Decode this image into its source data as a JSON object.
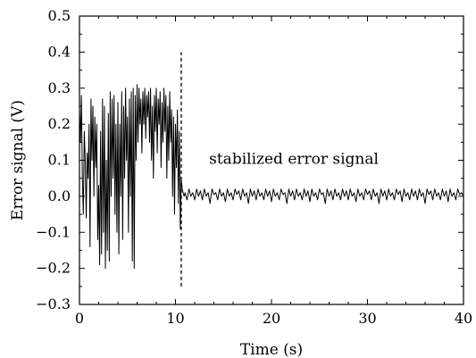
{
  "chart_data": {
    "type": "line",
    "xlabel": "Time (s)",
    "ylabel": "Error signal (V)",
    "xlim": [
      0,
      40
    ],
    "ylim": [
      -0.3,
      0.5
    ],
    "x_ticks": [
      0,
      10,
      20,
      30,
      40
    ],
    "x_tick_labels": [
      "0",
      "10",
      "20",
      "30",
      "40"
    ],
    "y_ticks": [
      -0.3,
      -0.2,
      -0.1,
      0.0,
      0.1,
      0.2,
      0.3,
      0.4,
      0.5
    ],
    "y_tick_labels": [
      "−0.3",
      "−0.2",
      "−0.1",
      "0.0",
      "0.1",
      "0.2",
      "0.3",
      "0.4",
      "0.5"
    ],
    "grid": false,
    "series": [
      {
        "style": "solid",
        "color": "#000000",
        "points": [
          [
            0.0,
            0.24
          ],
          [
            0.1,
            0.15
          ],
          [
            0.2,
            0.28
          ],
          [
            0.3,
            0.05
          ],
          [
            0.4,
            -0.05
          ],
          [
            0.5,
            0.18
          ],
          [
            0.6,
            0.1
          ],
          [
            0.7,
            -0.06
          ],
          [
            0.8,
            0.12
          ],
          [
            0.9,
            0.05
          ],
          [
            1.0,
            0.2
          ],
          [
            1.1,
            -0.14
          ],
          [
            1.2,
            0.27
          ],
          [
            1.3,
            0.1
          ],
          [
            1.4,
            0.25
          ],
          [
            1.5,
            0.0
          ],
          [
            1.6,
            0.22
          ],
          [
            1.7,
            0.08
          ],
          [
            1.8,
            0.2
          ],
          [
            1.9,
            -0.12
          ],
          [
            2.0,
            0.03
          ],
          [
            2.1,
            -0.19
          ],
          [
            2.2,
            0.18
          ],
          [
            2.3,
            -0.16
          ],
          [
            2.4,
            0.27
          ],
          [
            2.5,
            -0.1
          ],
          [
            2.6,
            0.25
          ],
          [
            2.7,
            -0.2
          ],
          [
            2.8,
            0.1
          ],
          [
            2.9,
            -0.15
          ],
          [
            3.0,
            0.23
          ],
          [
            3.1,
            -0.18
          ],
          [
            3.2,
            0.29
          ],
          [
            3.3,
            0.0
          ],
          [
            3.4,
            0.27
          ],
          [
            3.5,
            0.05
          ],
          [
            3.6,
            0.28
          ],
          [
            3.7,
            -0.05
          ],
          [
            3.8,
            0.2
          ],
          [
            3.9,
            -0.1
          ],
          [
            4.0,
            0.26
          ],
          [
            4.1,
            -0.16
          ],
          [
            4.2,
            0.2
          ],
          [
            4.3,
            0.0
          ],
          [
            4.4,
            0.29
          ],
          [
            4.5,
            -0.12
          ],
          [
            4.6,
            0.25
          ],
          [
            4.7,
            0.05
          ],
          [
            4.8,
            0.3
          ],
          [
            4.9,
            0.1
          ],
          [
            5.0,
            0.22
          ],
          [
            5.1,
            -0.1
          ],
          [
            5.2,
            0.27
          ],
          [
            5.3,
            0.0
          ],
          [
            5.4,
            0.29
          ],
          [
            5.5,
            -0.18
          ],
          [
            5.6,
            0.3
          ],
          [
            5.7,
            -0.2
          ],
          [
            5.8,
            0.28
          ],
          [
            5.9,
            0.1
          ],
          [
            6.0,
            0.31
          ],
          [
            6.1,
            0.15
          ],
          [
            6.2,
            0.3
          ],
          [
            6.3,
            0.2
          ],
          [
            6.4,
            0.27
          ],
          [
            6.5,
            0.12
          ],
          [
            6.6,
            0.29
          ],
          [
            6.7,
            0.2
          ],
          [
            6.8,
            0.3
          ],
          [
            6.9,
            0.16
          ],
          [
            7.0,
            0.28
          ],
          [
            7.1,
            0.22
          ],
          [
            7.2,
            0.29
          ],
          [
            7.3,
            0.15
          ],
          [
            7.4,
            0.3
          ],
          [
            7.5,
            0.1
          ],
          [
            7.6,
            0.25
          ],
          [
            7.7,
            0.05
          ],
          [
            7.8,
            0.28
          ],
          [
            7.9,
            0.18
          ],
          [
            8.0,
            0.3
          ],
          [
            8.1,
            0.12
          ],
          [
            8.2,
            0.27
          ],
          [
            8.3,
            0.2
          ],
          [
            8.4,
            0.29
          ],
          [
            8.5,
            0.08
          ],
          [
            8.6,
            0.26
          ],
          [
            8.7,
            0.15
          ],
          [
            8.8,
            0.3
          ],
          [
            8.9,
            0.18
          ],
          [
            9.0,
            0.28
          ],
          [
            9.1,
            0.05
          ],
          [
            9.2,
            0.25
          ],
          [
            9.3,
            0.1
          ],
          [
            9.4,
            0.29
          ],
          [
            9.5,
            0.15
          ],
          [
            9.6,
            0.24
          ],
          [
            9.7,
            0.0
          ],
          [
            9.8,
            0.22
          ],
          [
            9.9,
            -0.05
          ],
          [
            10.0,
            0.2
          ],
          [
            10.1,
            0.08
          ],
          [
            10.2,
            0.24
          ],
          [
            10.3,
            -0.02
          ],
          [
            10.4,
            0.18
          ],
          [
            10.5,
            -0.09
          ],
          [
            10.6,
            0.05
          ],
          [
            10.7,
            0.02
          ],
          [
            10.8,
            0.01
          ],
          [
            10.9,
            0.0
          ],
          [
            11.0,
            0.01
          ],
          [
            11.2,
            -0.01
          ],
          [
            11.4,
            0.02
          ],
          [
            11.6,
            0.0
          ],
          [
            11.8,
            0.01
          ],
          [
            12.0,
            -0.01
          ],
          [
            12.2,
            0.02
          ],
          [
            12.4,
            0.0
          ],
          [
            12.6,
            0.015
          ],
          [
            12.8,
            -0.01
          ],
          [
            13.0,
            0.02
          ],
          [
            13.2,
            0.0
          ],
          [
            13.4,
            0.01
          ],
          [
            13.6,
            -0.02
          ],
          [
            13.8,
            0.02
          ],
          [
            14.0,
            0.005
          ],
          [
            14.2,
            0.01
          ],
          [
            14.4,
            -0.01
          ],
          [
            14.6,
            0.02
          ],
          [
            14.8,
            0.0
          ],
          [
            15.0,
            0.01
          ],
          [
            15.2,
            -0.015
          ],
          [
            15.4,
            0.02
          ],
          [
            15.6,
            0.0
          ],
          [
            15.8,
            0.01
          ],
          [
            16.0,
            -0.01
          ],
          [
            16.2,
            0.02
          ],
          [
            16.4,
            0.005
          ],
          [
            16.6,
            0.015
          ],
          [
            16.8,
            -0.01
          ],
          [
            17.0,
            0.02
          ],
          [
            17.2,
            0.0
          ],
          [
            17.4,
            0.01
          ],
          [
            17.6,
            -0.02
          ],
          [
            17.8,
            0.02
          ],
          [
            18.0,
            0.0
          ],
          [
            18.2,
            0.015
          ],
          [
            18.4,
            -0.01
          ],
          [
            18.6,
            0.02
          ],
          [
            18.8,
            0.0
          ],
          [
            19.0,
            0.01
          ],
          [
            19.2,
            -0.01
          ],
          [
            19.4,
            0.02
          ],
          [
            19.6,
            0.0
          ],
          [
            19.8,
            0.015
          ],
          [
            20.0,
            -0.015
          ],
          [
            20.2,
            0.02
          ],
          [
            20.4,
            0.0
          ],
          [
            20.6,
            0.01
          ],
          [
            20.8,
            -0.01
          ],
          [
            21.0,
            0.02
          ],
          [
            21.2,
            0.005
          ],
          [
            21.4,
            0.01
          ],
          [
            21.6,
            -0.02
          ],
          [
            21.8,
            0.02
          ],
          [
            22.0,
            0.0
          ],
          [
            22.2,
            0.015
          ],
          [
            22.4,
            -0.01
          ],
          [
            22.6,
            0.02
          ],
          [
            22.8,
            0.0
          ],
          [
            23.0,
            0.01
          ],
          [
            23.2,
            -0.01
          ],
          [
            23.4,
            0.02
          ],
          [
            23.6,
            0.0
          ],
          [
            23.8,
            0.015
          ],
          [
            24.0,
            -0.015
          ],
          [
            24.2,
            0.02
          ],
          [
            24.4,
            0.0
          ],
          [
            24.6,
            0.01
          ],
          [
            24.8,
            -0.01
          ],
          [
            25.0,
            0.02
          ],
          [
            25.2,
            0.005
          ],
          [
            25.4,
            0.01
          ],
          [
            25.6,
            -0.02
          ],
          [
            25.8,
            0.02
          ],
          [
            26.0,
            0.0
          ],
          [
            26.2,
            0.015
          ],
          [
            26.4,
            -0.01
          ],
          [
            26.6,
            0.02
          ],
          [
            26.8,
            0.0
          ],
          [
            27.0,
            0.01
          ],
          [
            27.2,
            -0.01
          ],
          [
            27.4,
            0.02
          ],
          [
            27.6,
            0.0
          ],
          [
            27.8,
            0.015
          ],
          [
            28.0,
            -0.01
          ],
          [
            28.2,
            0.02
          ],
          [
            28.4,
            0.0
          ],
          [
            28.6,
            0.01
          ],
          [
            28.8,
            -0.015
          ],
          [
            29.0,
            0.02
          ],
          [
            29.2,
            0.0
          ],
          [
            29.4,
            0.01
          ],
          [
            29.6,
            -0.01
          ],
          [
            29.8,
            0.02
          ],
          [
            30.0,
            0.005
          ],
          [
            30.2,
            0.015
          ],
          [
            30.4,
            -0.01
          ],
          [
            30.6,
            0.02
          ],
          [
            30.8,
            0.0
          ],
          [
            31.0,
            0.01
          ],
          [
            31.2,
            -0.02
          ],
          [
            31.4,
            0.02
          ],
          [
            31.6,
            0.0
          ],
          [
            31.8,
            0.015
          ],
          [
            32.0,
            -0.01
          ],
          [
            32.2,
            0.02
          ],
          [
            32.4,
            0.0
          ],
          [
            32.6,
            0.01
          ],
          [
            32.8,
            -0.01
          ],
          [
            33.0,
            0.02
          ],
          [
            33.2,
            0.005
          ],
          [
            33.4,
            0.015
          ],
          [
            33.6,
            -0.015
          ],
          [
            33.8,
            0.02
          ],
          [
            34.0,
            0.0
          ],
          [
            34.2,
            0.01
          ],
          [
            34.4,
            -0.01
          ],
          [
            34.6,
            0.02
          ],
          [
            34.8,
            0.0
          ],
          [
            35.0,
            0.015
          ],
          [
            35.2,
            -0.01
          ],
          [
            35.4,
            0.02
          ],
          [
            35.6,
            0.0
          ],
          [
            35.8,
            0.01
          ],
          [
            36.0,
            -0.02
          ],
          [
            36.2,
            0.02
          ],
          [
            36.4,
            0.005
          ],
          [
            36.6,
            0.015
          ],
          [
            36.8,
            -0.01
          ],
          [
            37.0,
            0.02
          ],
          [
            37.2,
            0.0
          ],
          [
            37.4,
            0.01
          ],
          [
            37.6,
            -0.01
          ],
          [
            37.8,
            0.02
          ],
          [
            38.0,
            0.0
          ],
          [
            38.2,
            0.015
          ],
          [
            38.4,
            -0.015
          ],
          [
            38.6,
            0.02
          ],
          [
            38.8,
            0.0
          ],
          [
            39.0,
            0.01
          ],
          [
            39.2,
            -0.01
          ],
          [
            39.4,
            0.02
          ],
          [
            39.6,
            0.005
          ],
          [
            39.8,
            0.01
          ],
          [
            40.0,
            0.0
          ]
        ]
      }
    ],
    "marker_line": {
      "x": 10.6,
      "y_from": -0.25,
      "y_to": 0.4,
      "style": "dashed"
    },
    "annotations": [
      {
        "text": "stabilized error signal",
        "x": 13.5,
        "y": 0.09
      }
    ]
  }
}
